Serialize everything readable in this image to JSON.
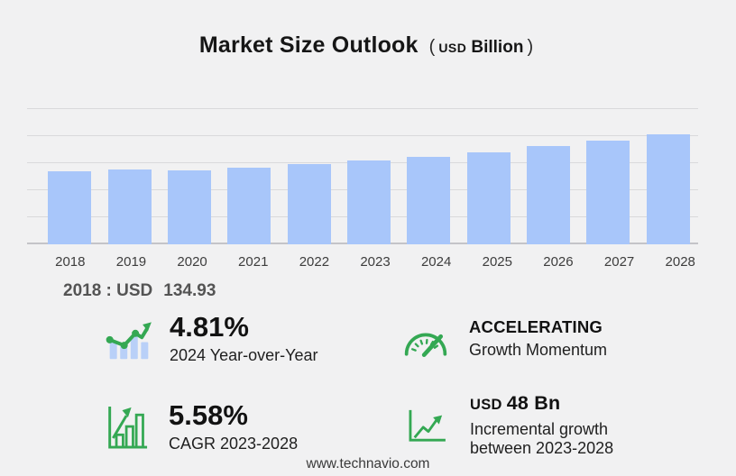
{
  "header": {
    "title": "Market Size Outlook",
    "unit_open": "(",
    "unit_currency": "USD",
    "unit_word": "Billion",
    "unit_close": ")"
  },
  "chart_data": {
    "type": "bar",
    "title": "Market Size Outlook (USD Billion)",
    "categories": [
      "2018",
      "2019",
      "2020",
      "2021",
      "2022",
      "2023",
      "2024",
      "2025",
      "2026",
      "2027",
      "2028"
    ],
    "values": [
      134.93,
      138.8,
      136.7,
      142.2,
      147.7,
      155.0,
      162.0,
      170.0,
      181.0,
      191.0,
      203.0
    ],
    "ylabel": "",
    "xlabel": "",
    "unit": "USD Billion",
    "ylim": [
      0,
      260
    ],
    "y_gridlines": [
      0,
      50,
      100,
      150,
      200,
      250
    ],
    "grid": true,
    "legend": "none"
  },
  "annotation": {
    "label": "2018 : USD",
    "value": "134.93"
  },
  "stats": {
    "yoy": {
      "icon": "bar-chart-trend-icon",
      "value": "4.81%",
      "label": "2024 Year-over-Year"
    },
    "momentum": {
      "icon": "gauge-icon",
      "value": "ACCELERATING",
      "label": "Growth Momentum"
    },
    "cagr": {
      "icon": "framed-bar-growth-icon",
      "value": "5.58%",
      "label": "CAGR 2023-2028"
    },
    "incremental": {
      "icon": "axes-trend-arrow-icon",
      "currency": "USD",
      "value": "48 Bn",
      "label_line1": "Incremental growth",
      "label_line2": "between 2023-2028"
    }
  },
  "footer": {
    "url": "www.technavio.com"
  },
  "colors": {
    "background": "#f1f1f2",
    "bar": "#a8c6fa",
    "green": "#34a853",
    "icon_bar_blue": "#b9d0f8",
    "gridline": "#d9d9db",
    "axis_line": "#c4c4c8"
  }
}
